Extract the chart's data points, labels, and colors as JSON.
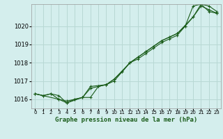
{
  "title": "Graphe pression niveau de la mer (hPa)",
  "bg_color": "#d4eeed",
  "grid_color": "#b8d8d4",
  "line_color": "#1a5c1a",
  "marker_color": "#1a5c1a",
  "xlim": [
    -0.5,
    23.5
  ],
  "ylim": [
    1015.5,
    1021.2
  ],
  "yticks": [
    1016,
    1017,
    1018,
    1019,
    1020
  ],
  "xticks": [
    0,
    1,
    2,
    3,
    4,
    5,
    6,
    7,
    8,
    9,
    10,
    11,
    12,
    13,
    14,
    15,
    16,
    17,
    18,
    19,
    20,
    21,
    22,
    23
  ],
  "series1": [
    [
      0,
      1016.3
    ],
    [
      1,
      1016.2
    ],
    [
      2,
      1016.3
    ],
    [
      3,
      1016.2
    ],
    [
      4,
      1015.8
    ],
    [
      5,
      1016.0
    ],
    [
      6,
      1016.1
    ],
    [
      7,
      1016.1
    ],
    [
      8,
      1016.7
    ],
    [
      9,
      1016.8
    ],
    [
      10,
      1017.0
    ],
    [
      11,
      1017.5
    ],
    [
      12,
      1018.0
    ],
    [
      13,
      1018.2
    ],
    [
      14,
      1018.5
    ],
    [
      15,
      1018.8
    ],
    [
      16,
      1019.1
    ],
    [
      17,
      1019.3
    ],
    [
      18,
      1019.5
    ],
    [
      19,
      1020.0
    ],
    [
      20,
      1021.1
    ],
    [
      21,
      1021.2
    ],
    [
      22,
      1020.8
    ],
    [
      23,
      1020.7
    ]
  ],
  "series2": [
    [
      0,
      1016.3
    ],
    [
      1,
      1016.2
    ],
    [
      2,
      1016.3
    ],
    [
      3,
      1016.0
    ],
    [
      4,
      1015.9
    ],
    [
      5,
      1016.0
    ],
    [
      6,
      1016.1
    ],
    [
      7,
      1016.6
    ],
    [
      8,
      1016.7
    ],
    [
      9,
      1016.8
    ],
    [
      10,
      1017.1
    ],
    [
      11,
      1017.5
    ],
    [
      12,
      1018.0
    ],
    [
      13,
      1018.3
    ],
    [
      14,
      1018.6
    ],
    [
      15,
      1018.9
    ],
    [
      16,
      1019.2
    ],
    [
      17,
      1019.4
    ],
    [
      18,
      1019.6
    ],
    [
      19,
      1020.0
    ],
    [
      20,
      1020.5
    ],
    [
      21,
      1021.1
    ],
    [
      22,
      1020.9
    ],
    [
      23,
      1020.7
    ]
  ],
  "series3": [
    [
      0,
      1016.3
    ],
    [
      3,
      1016.0
    ],
    [
      4,
      1015.8
    ],
    [
      6,
      1016.1
    ],
    [
      7,
      1016.7
    ],
    [
      9,
      1016.8
    ],
    [
      10,
      1017.1
    ],
    [
      12,
      1018.0
    ],
    [
      14,
      1018.6
    ],
    [
      16,
      1019.2
    ],
    [
      18,
      1019.6
    ],
    [
      20,
      1020.5
    ],
    [
      21,
      1021.2
    ],
    [
      22,
      1021.1
    ],
    [
      23,
      1020.8
    ]
  ]
}
